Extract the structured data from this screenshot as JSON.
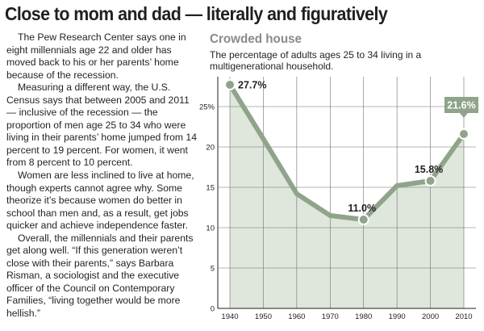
{
  "headline": "Close to mom and dad — literally and figuratively",
  "story": {
    "paragraphs": [
      "The Pew Research Center says one in eight millennials age 22 and older has moved back to his or her parents’ home because of the recession.",
      "Measuring a different way, the U.S. Census says that between 2005 and 2011 — inclusive of the recession — the proportion of men age 25 to 34 who were living in their parents’ home jumped from 14 percent to 19 percent. For women, it went from 8 percent to 10 percent.",
      "Women are less inclined to live at home, though experts cannot agree why. Some theorize it’s because women do better in school than men and, as a result, get jobs quicker and achieve independence faster.",
      "Overall, the millennials and their parents get along well. “If this generation weren’t close with their parents,” says Barbara Risman, a sociologist and the executive officer of the Council on Contemporary Families, “living together would be more hellish.”"
    ]
  },
  "colors": {
    "line": "#8fa48a",
    "fill": "#dfe6dc",
    "grid": "#6e6e6e",
    "highlight_box": "#8fa48a"
  },
  "chart_data": {
    "type": "area",
    "title": "Crowded house",
    "subtitle": "The percentage of adults ages 25 to 34 living in a multigenerational household.",
    "x": [
      1940,
      1950,
      1960,
      1970,
      1980,
      1990,
      2000,
      2010
    ],
    "values": [
      27.7,
      21.0,
      14.2,
      11.5,
      11.0,
      15.2,
      15.8,
      21.6
    ],
    "xlabel": "",
    "ylabel": "",
    "ylim": [
      0,
      28
    ],
    "yticks": [
      0,
      5,
      10,
      15,
      20,
      25
    ],
    "ytick_labels": [
      "0",
      "5",
      "10",
      "15",
      "20",
      "25%"
    ],
    "xtick_labels": [
      "1940",
      "1950",
      "1960",
      "1970",
      "1980",
      "1990",
      "2000",
      "2010"
    ],
    "annotations": [
      {
        "year": 1940,
        "label": "27.7%"
      },
      {
        "year": 1980,
        "label": "11.0%"
      },
      {
        "year": 2000,
        "label": "15.8%"
      },
      {
        "year": 2010,
        "label": "21.6%",
        "highlight": true
      }
    ]
  }
}
